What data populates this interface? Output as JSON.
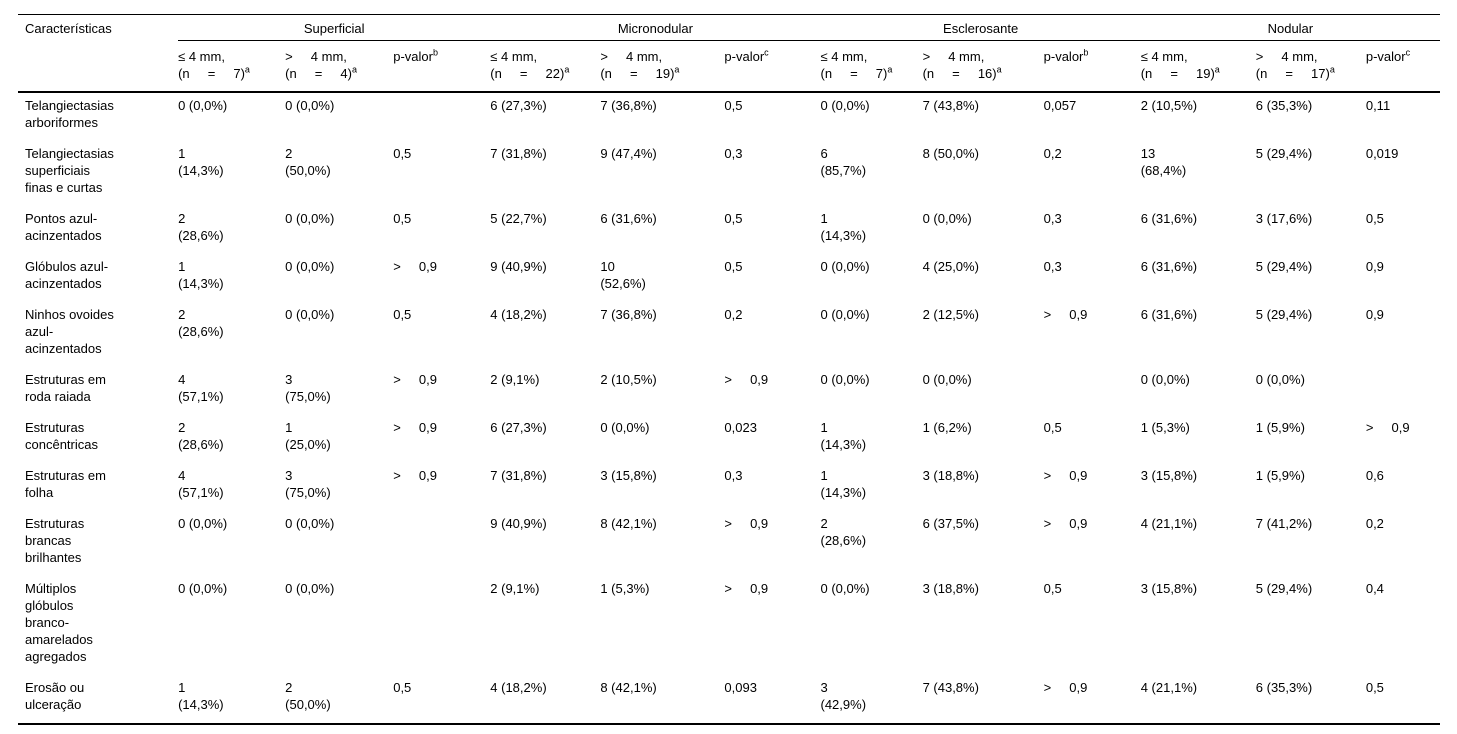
{
  "table": {
    "corner_label": "Características",
    "groups": [
      {
        "name": "Superficial",
        "columns": [
          {
            "line1": "≤ 4 mm,",
            "line2": "(n     =     7)",
            "sup": "a"
          },
          {
            "line1": ">     4 mm,",
            "line2": "(n     =     4)",
            "sup": "a"
          },
          {
            "line1": "p-valor",
            "sup": "b"
          }
        ]
      },
      {
        "name": "Micronodular",
        "columns": [
          {
            "line1": "≤ 4 mm,",
            "line2": "(n     =     22)",
            "sup": "a"
          },
          {
            "line1": ">     4 mm,",
            "line2": "(n     =     19)",
            "sup": "a"
          },
          {
            "line1": "p-valor",
            "sup": "c"
          }
        ]
      },
      {
        "name": "Esclerosante",
        "columns": [
          {
            "line1": "≤ 4 mm,",
            "line2": "(n     =     7)",
            "sup": "a"
          },
          {
            "line1": ">     4 mm,",
            "line2": "(n     =     16)",
            "sup": "a"
          },
          {
            "line1": "p-valor",
            "sup": "b"
          }
        ]
      },
      {
        "name": "Nodular",
        "columns": [
          {
            "line1": "≤ 4 mm,",
            "line2": "(n     =     19)",
            "sup": "a"
          },
          {
            "line1": ">     4 mm,",
            "line2": "(n     =     17)",
            "sup": "a"
          },
          {
            "line1": "p-valor",
            "sup": "c"
          }
        ]
      }
    ],
    "rows": [
      {
        "label": "Telangiectasias\narboriformes",
        "cells": [
          "0 (0,0%)",
          "0 (0,0%)",
          "",
          "6 (27,3%)",
          "7 (36,8%)",
          "0,5",
          "0 (0,0%)",
          "7 (43,8%)",
          "0,057",
          "2 (10,5%)",
          "6 (35,3%)",
          "0,11"
        ]
      },
      {
        "label": "Telangiectasias\nsuperficiais\nfinas e curtas",
        "cells": [
          "1\n(14,3%)",
          "2\n(50,0%)",
          "0,5",
          "7 (31,8%)",
          "9 (47,4%)",
          "0,3",
          "6\n(85,7%)",
          "8 (50,0%)",
          "0,2",
          "13\n(68,4%)",
          "5 (29,4%)",
          "0,019"
        ]
      },
      {
        "label": "Pontos azul-\nacinzentados",
        "cells": [
          "2\n(28,6%)",
          "0 (0,0%)",
          "0,5",
          "5 (22,7%)",
          "6 (31,6%)",
          "0,5",
          "1\n(14,3%)",
          "0 (0,0%)",
          "0,3",
          "6 (31,6%)",
          "3 (17,6%)",
          "0,5"
        ]
      },
      {
        "label": "Glóbulos azul-\nacinzentados",
        "cells": [
          "1\n(14,3%)",
          "0 (0,0%)",
          ">     0,9",
          "9 (40,9%)",
          "10\n(52,6%)",
          "0,5",
          "0 (0,0%)",
          "4 (25,0%)",
          "0,3",
          "6 (31,6%)",
          "5 (29,4%)",
          "0,9"
        ]
      },
      {
        "label": "Ninhos ovoides\nazul-\nacinzentados",
        "cells": [
          "2\n(28,6%)",
          "0 (0,0%)",
          "0,5",
          "4 (18,2%)",
          "7 (36,8%)",
          "0,2",
          "0 (0,0%)",
          "2 (12,5%)",
          ">     0,9",
          "6 (31,6%)",
          "5 (29,4%)",
          "0,9"
        ]
      },
      {
        "label": "Estruturas em\nroda raiada",
        "cells": [
          "4\n(57,1%)",
          "3\n(75,0%)",
          ">     0,9",
          "2 (9,1%)",
          "2 (10,5%)",
          ">     0,9",
          "0 (0,0%)",
          "0 (0,0%)",
          "",
          "0 (0,0%)",
          "0 (0,0%)",
          ""
        ]
      },
      {
        "label": "Estruturas\nconcêntricas",
        "cells": [
          "2\n(28,6%)",
          "1\n(25,0%)",
          ">     0,9",
          "6 (27,3%)",
          "0 (0,0%)",
          "0,023",
          "1\n(14,3%)",
          "1 (6,2%)",
          "0,5",
          "1 (5,3%)",
          "1 (5,9%)",
          ">     0,9"
        ]
      },
      {
        "label": "Estruturas em\nfolha",
        "cells": [
          "4\n(57,1%)",
          "3\n(75,0%)",
          ">     0,9",
          "7 (31,8%)",
          "3 (15,8%)",
          "0,3",
          "1\n(14,3%)",
          "3 (18,8%)",
          ">     0,9",
          "3 (15,8%)",
          "1 (5,9%)",
          "0,6"
        ]
      },
      {
        "label": "Estruturas\nbrancas\nbrilhantes",
        "cells": [
          "0 (0,0%)",
          "0 (0,0%)",
          "",
          "9 (40,9%)",
          "8 (42,1%)",
          ">     0,9",
          "2\n(28,6%)",
          "6 (37,5%)",
          ">     0,9",
          "4 (21,1%)",
          "7 (41,2%)",
          "0,2"
        ]
      },
      {
        "label": "Múltiplos\nglóbulos\nbranco-\namarelados\nagregados",
        "cells": [
          "0 (0,0%)",
          "0 (0,0%)",
          "",
          "2 (9,1%)",
          "1 (5,3%)",
          ">     0,9",
          "0 (0,0%)",
          "3 (18,8%)",
          "0,5",
          "3 (15,8%)",
          "5 (29,4%)",
          "0,4"
        ]
      },
      {
        "label": "Erosão ou\nulceração",
        "cells": [
          "1\n(14,3%)",
          "2\n(50,0%)",
          "0,5",
          "4 (18,2%)",
          "8 (42,1%)",
          "0,093",
          "3\n(42,9%)",
          "7 (43,8%)",
          ">     0,9",
          "4 (21,1%)",
          "6 (35,3%)",
          "0,5"
        ]
      }
    ]
  }
}
